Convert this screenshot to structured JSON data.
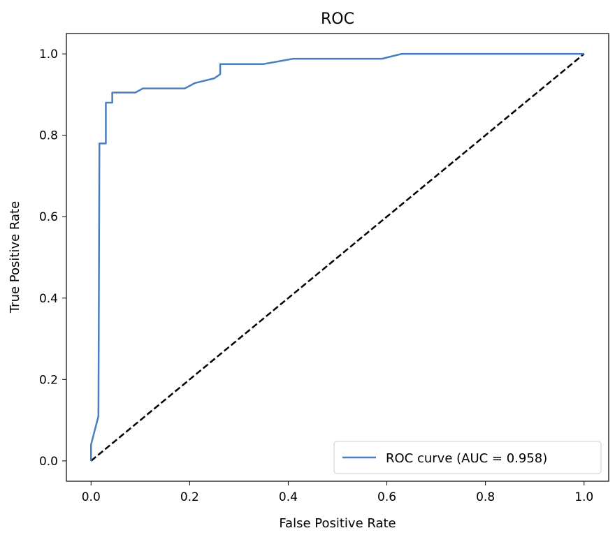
{
  "chart_data": {
    "type": "line",
    "title": "ROC",
    "xlabel": "False Positive Rate",
    "ylabel": "True Positive Rate",
    "xlim": [
      -0.05,
      1.05
    ],
    "ylim": [
      -0.05,
      1.05
    ],
    "xticks": [
      "0.0",
      "0.2",
      "0.4",
      "0.6",
      "0.8",
      "1.0"
    ],
    "yticks": [
      "0.0",
      "0.2",
      "0.4",
      "0.6",
      "0.8",
      "1.0"
    ],
    "grid": false,
    "legend_position": "lower-right",
    "series": [
      {
        "name": "ROC curve (AUC = 0.958)",
        "color": "#4a7fbf",
        "style": "solid",
        "points": [
          [
            0.0,
            0.0
          ],
          [
            0.0,
            0.04
          ],
          [
            0.015,
            0.11
          ],
          [
            0.017,
            0.78
          ],
          [
            0.03,
            0.78
          ],
          [
            0.03,
            0.88
          ],
          [
            0.043,
            0.88
          ],
          [
            0.043,
            0.905
          ],
          [
            0.09,
            0.905
          ],
          [
            0.105,
            0.915
          ],
          [
            0.19,
            0.915
          ],
          [
            0.21,
            0.928
          ],
          [
            0.25,
            0.94
          ],
          [
            0.262,
            0.95
          ],
          [
            0.262,
            0.975
          ],
          [
            0.35,
            0.975
          ],
          [
            0.41,
            0.988
          ],
          [
            0.59,
            0.988
          ],
          [
            0.63,
            1.0
          ],
          [
            1.0,
            1.0
          ]
        ]
      },
      {
        "color": "#000000",
        "style": "dashed",
        "points": [
          [
            0.0,
            0.0
          ],
          [
            1.0,
            1.0
          ]
        ]
      }
    ]
  }
}
